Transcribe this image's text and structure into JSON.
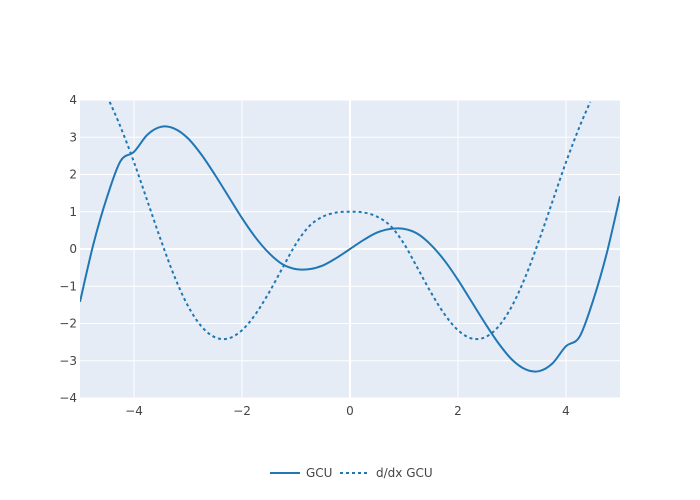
{
  "chart_data": {
    "type": "line",
    "xlim": [
      -5,
      5
    ],
    "ylim": [
      -4,
      4
    ],
    "x_ticks": [
      -4,
      -2,
      0,
      2,
      4
    ],
    "y_ticks": [
      -4,
      -3,
      -2,
      -1,
      0,
      1,
      2,
      3,
      4
    ],
    "x_tick_labels": [
      "−4",
      "−2",
      "0",
      "2",
      "4"
    ],
    "y_tick_labels": [
      "−4",
      "−3",
      "−2",
      "−1",
      "0",
      "1",
      "2",
      "3",
      "4"
    ],
    "grid": true,
    "legend_position": "bottom-center",
    "series": [
      {
        "name": "GCU",
        "style": "solid",
        "color": "#1f77b4",
        "x": [
          -5.0,
          -4.75,
          -4.5,
          -4.25,
          -4.0,
          -3.75,
          -3.5,
          -3.25,
          -3.0,
          -2.75,
          -2.5,
          -2.25,
          -2.0,
          -1.75,
          -1.5,
          -1.25,
          -1.0,
          -0.75,
          -0.5,
          -0.25,
          0.0,
          0.25,
          0.5,
          0.75,
          1.0,
          1.25,
          1.5,
          1.75,
          2.0,
          2.25,
          2.5,
          2.75,
          3.0,
          3.25,
          3.5,
          3.75,
          4.0,
          4.25,
          4.5,
          4.75,
          5.0
        ],
        "y": [
          -1.418,
          0.14,
          1.39,
          2.36,
          2.61,
          3.07,
          3.28,
          3.23,
          2.97,
          2.53,
          1.99,
          1.41,
          0.83,
          0.31,
          -0.11,
          -0.41,
          -0.54,
          -0.54,
          -0.44,
          -0.24,
          0.0,
          0.24,
          0.44,
          0.54,
          0.54,
          0.41,
          0.11,
          -0.31,
          -0.83,
          -1.41,
          -1.99,
          -2.53,
          -2.97,
          -3.23,
          -3.28,
          -3.07,
          -2.61,
          -2.36,
          -1.39,
          -0.14,
          1.418
        ]
      },
      {
        "name": "d/dx GCU",
        "style": "dotted",
        "color": "#1f77b4",
        "x": [
          -4.45,
          -4.25,
          -4.0,
          -3.75,
          -3.5,
          -3.25,
          -3.0,
          -2.75,
          -2.5,
          -2.25,
          -2.0,
          -1.75,
          -1.5,
          -1.25,
          -1.0,
          -0.75,
          -0.5,
          -0.25,
          0.0,
          0.25,
          0.5,
          0.75,
          1.0,
          1.25,
          1.5,
          1.75,
          2.0,
          2.25,
          2.5,
          2.75,
          3.0,
          3.25,
          3.5,
          3.75,
          4.0,
          4.25,
          4.45
        ],
        "y": [
          3.95,
          3.28,
          2.33,
          1.28,
          0.23,
          -0.74,
          -1.53,
          -2.08,
          -2.37,
          -2.4,
          -2.18,
          -1.75,
          -1.17,
          -0.51,
          0.14,
          0.62,
          0.87,
          0.98,
          1.0,
          0.98,
          0.87,
          0.62,
          0.14,
          -0.51,
          -1.17,
          -1.75,
          -2.18,
          -2.4,
          -2.37,
          -2.08,
          -1.53,
          -0.74,
          0.23,
          1.28,
          2.33,
          3.28,
          3.95
        ]
      }
    ]
  }
}
